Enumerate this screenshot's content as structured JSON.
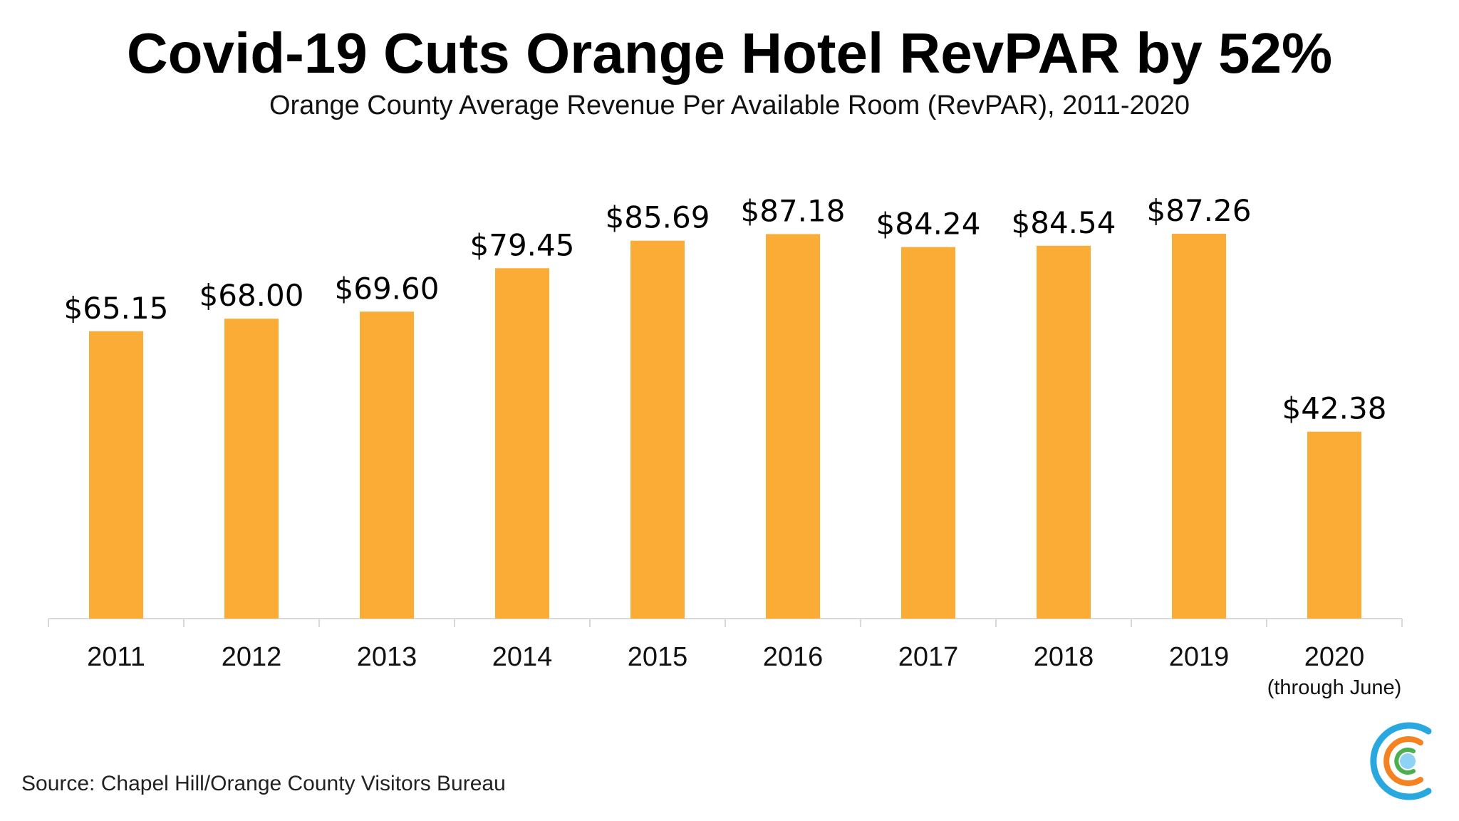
{
  "header": {
    "title": "Covid-19 Cuts Orange Hotel RevPAR by 52%",
    "subtitle": "Orange County Average Revenue Per Available Room (RevPAR), 2011-2020"
  },
  "footer": {
    "source": "Source: Chapel Hill/Orange County Visitors Bureau"
  },
  "logo": {
    "icon": "concentric-c-logo-icon",
    "colors": [
      "#29a8e0",
      "#f58220",
      "#4caf50",
      "#8fd3f4"
    ]
  },
  "chart_data": {
    "type": "bar",
    "title": "Covid-19 Cuts Orange Hotel RevPAR by 52%",
    "subtitle": "Orange County Average Revenue Per Available Room (RevPAR), 2011-2020",
    "xlabel": "",
    "ylabel": "",
    "categories": [
      "2011",
      "2012",
      "2013",
      "2014",
      "2015",
      "2016",
      "2017",
      "2018",
      "2019",
      "2020"
    ],
    "category_sublabels": [
      "",
      "",
      "",
      "",
      "",
      "",
      "",
      "",
      "",
      "(through June)"
    ],
    "values": [
      65.15,
      68.0,
      69.6,
      79.45,
      85.69,
      87.18,
      84.24,
      84.54,
      87.26,
      42.38
    ],
    "data_labels": [
      "$65.15",
      "$68.00",
      "$69.60",
      "$79.45",
      "$85.69",
      "$87.18",
      "$84.24",
      "$84.54",
      "$87.26",
      "$42.38"
    ],
    "ylim": [
      0,
      87.26
    ],
    "grid": false,
    "legend": "none",
    "bar_color": "#fbac36",
    "axis_color": "#d9d9d9"
  }
}
